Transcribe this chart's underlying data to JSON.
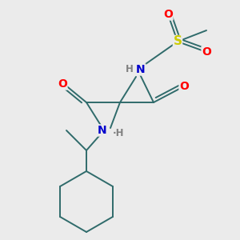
{
  "background_color": "#ebebeb",
  "bond_color": "#2f6b6b",
  "atom_colors": {
    "O": "#ff0000",
    "N": "#0000cc",
    "S": "#cccc00",
    "H": "#808080"
  },
  "figsize": [
    3.0,
    3.0
  ],
  "dpi": 100
}
